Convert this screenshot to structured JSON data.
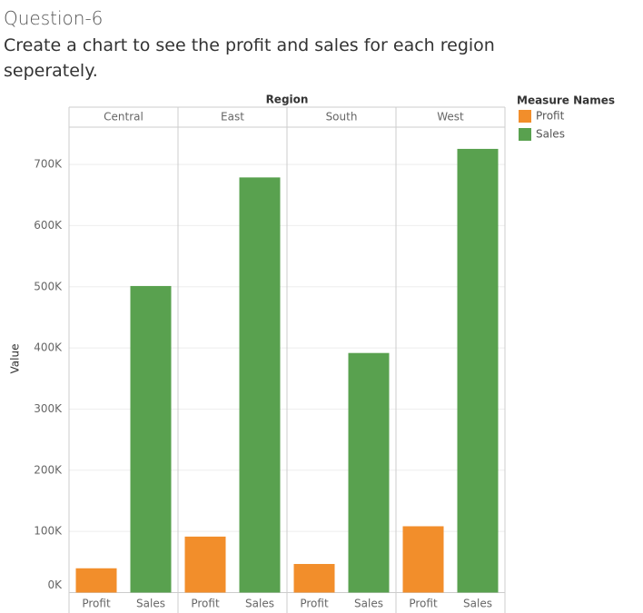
{
  "chart_data": {
    "type": "bar",
    "title": "Question-6",
    "subtitle": "Create a chart to see the profit and sales for each region seperately.",
    "column_header": "Region",
    "y_label": "Value",
    "legend_title": "Measure Names",
    "categories": [
      "Central",
      "East",
      "South",
      "West"
    ],
    "series": [
      {
        "name": "Profit",
        "color": "#f28e2b",
        "values": [
          39706,
          91523,
          46749,
          108418
        ]
      },
      {
        "name": "Sales",
        "color": "#59a14f",
        "values": [
          501240,
          678781,
          391722,
          725458
        ]
      }
    ],
    "ylim": [
      0,
      761000
    ],
    "yticks": [
      {
        "value": 0,
        "label": "0K"
      },
      {
        "value": 100000,
        "label": "100K"
      },
      {
        "value": 200000,
        "label": "200K"
      },
      {
        "value": 300000,
        "label": "300K"
      },
      {
        "value": 400000,
        "label": "400K"
      },
      {
        "value": 500000,
        "label": "500K"
      },
      {
        "value": 600000,
        "label": "600K"
      },
      {
        "value": 700000,
        "label": "700K"
      }
    ],
    "grid": true,
    "legend_position": "right"
  }
}
